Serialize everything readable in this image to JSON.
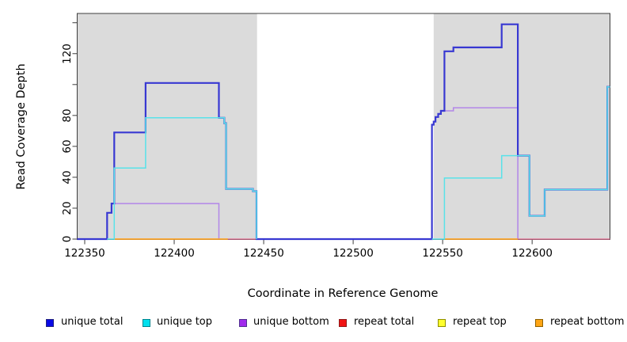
{
  "figure": {
    "background": "#ffffff"
  },
  "chart_data": {
    "type": "step-line",
    "title": "",
    "xlabel": "Coordinate in Reference Genome",
    "ylabel": "Read Coverage Depth",
    "xlim": [
      122345.8,
      122643.5
    ],
    "ylim": [
      0,
      146
    ],
    "x_ticks": [
      122350,
      122400,
      122450,
      122500,
      122550,
      122600
    ],
    "y_ticks": [
      {
        "v": 0,
        "label": "0"
      },
      {
        "v": 20,
        "label": "20"
      },
      {
        "v": 40,
        "label": "40"
      },
      {
        "v": 60,
        "label": "60"
      },
      {
        "v": 80,
        "label": "80"
      },
      {
        "v": 100,
        "label": ""
      },
      {
        "v": 120,
        "label": "120"
      },
      {
        "v": 140,
        "label": ""
      }
    ],
    "grid": false,
    "shaded_regions": [
      [
        122345.8,
        122446.3
      ],
      [
        122545.0,
        122643.5
      ]
    ],
    "colors": {
      "shaded_band": "#dbdbdb",
      "frame": "#3c3c3c",
      "tick": "#3c3c3c",
      "text": "#000000"
    },
    "legend_position": "bottom",
    "legend": [
      {
        "label": "unique total",
        "fill": "#0a0ae6",
        "border": "#23237f"
      },
      {
        "label": "unique top",
        "fill": "#00e0ee",
        "border": "#00858f"
      },
      {
        "label": "unique bottom",
        "fill": "#a12aec",
        "border": "#50308f"
      },
      {
        "label": "repeat total",
        "fill": "#f01414",
        "border": "#8f1a1a"
      },
      {
        "label": "repeat top",
        "fill": "#ffff2e",
        "border": "#8f8f00"
      },
      {
        "label": "repeat bottom",
        "fill": "#ffa514",
        "border": "#8f6000"
      }
    ],
    "series": [
      {
        "name": "unique bottom",
        "color": "#b286e8",
        "width": 1.5,
        "paths": [
          [
            [
              122362.5,
              0
            ],
            [
              122362.5,
              17
            ],
            [
              122365,
              17
            ],
            [
              122365,
              23
            ],
            [
              122425,
              23
            ],
            [
              122425,
              0
            ]
          ],
          [
            [
              122544,
              0
            ],
            [
              122544,
              74
            ],
            [
              122545,
              74
            ],
            [
              122545,
              76
            ],
            [
              122546,
              76
            ],
            [
              122546,
              79
            ],
            [
              122547.5,
              79
            ],
            [
              122547.5,
              81
            ],
            [
              122549,
              81
            ],
            [
              122549,
              83
            ],
            [
              122556,
              83
            ],
            [
              122556,
              85
            ],
            [
              122592,
              85
            ],
            [
              122592,
              0
            ]
          ]
        ]
      },
      {
        "name": "repeat top",
        "color": "#ede94f",
        "width": 1.3,
        "paths": [
          [
            [
              122366.5,
              0
            ],
            [
              122430,
              0
            ]
          ],
          [
            [
              122551,
              0
            ],
            [
              122592,
              0
            ]
          ]
        ]
      },
      {
        "name": "repeat total",
        "color": "#e4698f",
        "width": 1.3,
        "paths": [
          [
            [
              122366.5,
              0
            ],
            [
              122446,
              0
            ]
          ],
          [
            [
              122551,
              0
            ],
            [
              122643.5,
              0
            ]
          ]
        ]
      },
      {
        "name": "repeat bottom",
        "color": "#ffa41c",
        "width": 1.6,
        "paths": [
          [
            [
              122366.5,
              0
            ],
            [
              122430,
              0
            ]
          ],
          [
            [
              122551,
              0
            ],
            [
              122592,
              0
            ]
          ]
        ]
      },
      {
        "name": "unique total",
        "color": "#3838d2",
        "width": 2.2,
        "paths": [
          [
            [
              122345.8,
              0
            ],
            [
              122362.5,
              0
            ],
            [
              122362.5,
              17
            ],
            [
              122365,
              17
            ],
            [
              122365,
              23
            ],
            [
              122366.5,
              23
            ],
            [
              122366.5,
              69
            ],
            [
              122384,
              69
            ],
            [
              122384,
              101
            ],
            [
              122425,
              101
            ],
            [
              122425,
              78.5
            ],
            [
              122428,
              78.5
            ],
            [
              122428,
              75
            ],
            [
              122429,
              75
            ],
            [
              122429,
              32.5
            ],
            [
              122444,
              32.5
            ],
            [
              122444,
              31
            ],
            [
              122446,
              31
            ],
            [
              122446,
              0
            ],
            [
              122544,
              0
            ],
            [
              122544,
              74
            ],
            [
              122545,
              74
            ],
            [
              122545,
              76
            ],
            [
              122546,
              76
            ],
            [
              122546,
              79
            ],
            [
              122547.5,
              79
            ],
            [
              122547.5,
              81
            ],
            [
              122549,
              81
            ],
            [
              122549,
              83
            ],
            [
              122551,
              83
            ],
            [
              122551,
              121.5
            ],
            [
              122556,
              121.5
            ],
            [
              122556,
              124
            ],
            [
              122583,
              124
            ],
            [
              122583,
              139
            ],
            [
              122592,
              139
            ],
            [
              122592,
              54
            ],
            [
              122598.5,
              54
            ],
            [
              122598.5,
              15
            ],
            [
              122607,
              15
            ],
            [
              122607,
              32
            ],
            [
              122642,
              32
            ],
            [
              122642,
              98.5
            ],
            [
              122643.5,
              98.5
            ]
          ]
        ]
      },
      {
        "name": "unique top",
        "color": "#59e2e9",
        "width": 1.5,
        "paths": [
          [
            [
              122362.5,
              0
            ],
            [
              122366.5,
              0
            ],
            [
              122366.5,
              46
            ],
            [
              122384,
              46
            ],
            [
              122384,
              78.5
            ],
            [
              122428,
              78.5
            ],
            [
              122428,
              75
            ],
            [
              122429,
              75
            ],
            [
              122429,
              32.5
            ],
            [
              122444,
              32.5
            ],
            [
              122444,
              31
            ],
            [
              122446,
              31
            ],
            [
              122446,
              0
            ]
          ],
          [
            [
              122544,
              0
            ],
            [
              122551,
              0
            ],
            [
              122551,
              39.5
            ],
            [
              122583,
              39.5
            ],
            [
              122583,
              54
            ],
            [
              122598.5,
              54
            ],
            [
              122598.5,
              15
            ],
            [
              122607,
              15
            ],
            [
              122607,
              32
            ],
            [
              122642,
              32
            ],
            [
              122642,
              98.5
            ],
            [
              122643.5,
              98.5
            ]
          ]
        ]
      }
    ]
  }
}
